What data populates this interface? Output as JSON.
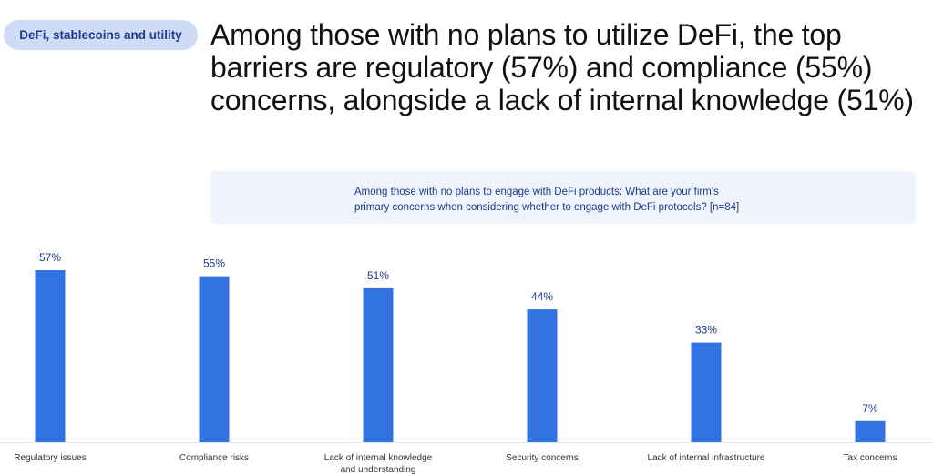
{
  "section_tag": "DeFi, stablecoins and utility",
  "headline": "Among those with no plans to utilize DeFi, the top barriers are regulatory (57%) and compliance (55%) concerns, alongside a lack of internal knowledge (51%)",
  "question": {
    "line1": "Among those with no plans to engage with DeFi products: What are your firm's",
    "line2": "primary concerns when considering whether to engage with DeFi protocols? [n=84]"
  },
  "colors": {
    "bar": "#3173e0",
    "accent_text": "#1e3a8a"
  },
  "chart_data": {
    "type": "bar",
    "title": "",
    "xlabel": "",
    "ylabel": "",
    "unit": "%",
    "ylim": [
      0,
      57
    ],
    "grid": false,
    "categories": [
      [
        "Regulatory issues"
      ],
      [
        "Compliance risks"
      ],
      [
        "Lack of internal knowledge",
        "and understanding"
      ],
      [
        "Security concerns"
      ],
      [
        "Lack of internal infrastructure"
      ],
      [
        "Tax concerns"
      ]
    ],
    "values": [
      57,
      55,
      51,
      44,
      33,
      7
    ],
    "value_labels": [
      "57%",
      "55%",
      "51%",
      "44%",
      "33%",
      "7%"
    ]
  }
}
